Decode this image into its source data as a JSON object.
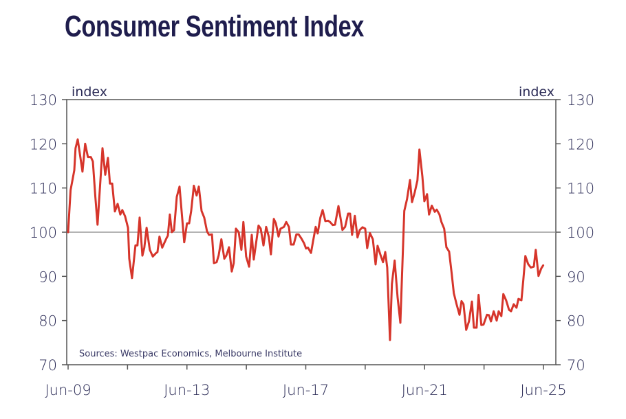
{
  "chart_data": {
    "type": "line",
    "title": "Consumer Sentiment Index",
    "ylabel_left": "index",
    "ylabel_right": "index",
    "source": "Sources: Westpac Economics, Melbourne Institute",
    "ylim": [
      70,
      130
    ],
    "yticks": [
      70,
      80,
      90,
      100,
      110,
      120,
      130
    ],
    "reference_line": 100,
    "x_unit": "months since Jun-09",
    "xlim": [
      0,
      192
    ],
    "xticks": [
      {
        "m": 0,
        "label": "Jun-09"
      },
      {
        "m": 24,
        "label": ""
      },
      {
        "m": 48,
        "label": "Jun-13"
      },
      {
        "m": 72,
        "label": ""
      },
      {
        "m": 96,
        "label": "Jun-17"
      },
      {
        "m": 120,
        "label": ""
      },
      {
        "m": 144,
        "label": "Jun-21"
      },
      {
        "m": 168,
        "label": ""
      },
      {
        "m": 192,
        "label": "Jun-25"
      }
    ],
    "series": [
      {
        "name": "Consumer Sentiment Index",
        "color": "#d6352b",
        "points": [
          [
            0,
            100
          ],
          [
            1,
            109.5
          ],
          [
            2.5,
            114
          ],
          [
            3,
            119
          ],
          [
            3.9,
            121
          ],
          [
            5.8,
            113.7
          ],
          [
            6.9,
            120
          ],
          [
            8,
            117
          ],
          [
            9.2,
            117
          ],
          [
            10,
            116
          ],
          [
            11,
            108
          ],
          [
            11.9,
            101.7
          ],
          [
            13.9,
            119
          ],
          [
            15,
            113
          ],
          [
            16.1,
            116.8
          ],
          [
            16.9,
            111
          ],
          [
            17.8,
            111
          ],
          [
            18.9,
            104.7
          ],
          [
            20,
            106.4
          ],
          [
            21.1,
            104
          ],
          [
            21.9,
            105
          ],
          [
            23,
            103.6
          ],
          [
            24.2,
            101
          ],
          [
            24.7,
            94
          ],
          [
            25.8,
            89.6
          ],
          [
            27.2,
            97
          ],
          [
            28,
            97
          ],
          [
            28.9,
            103.3
          ],
          [
            30,
            94.7
          ],
          [
            30.8,
            96.5
          ],
          [
            31.7,
            101
          ],
          [
            33,
            96
          ],
          [
            34.2,
            94.5
          ],
          [
            35.6,
            95.3
          ],
          [
            36.1,
            95.5
          ],
          [
            36.9,
            99
          ],
          [
            38,
            96.5
          ],
          [
            39.7,
            98.6
          ],
          [
            40.3,
            99.2
          ],
          [
            41.1,
            104
          ],
          [
            41.9,
            100
          ],
          [
            42.8,
            100.5
          ],
          [
            43.9,
            108
          ],
          [
            45,
            110.3
          ],
          [
            46.9,
            97.7
          ],
          [
            48,
            102
          ],
          [
            48.9,
            102
          ],
          [
            49.7,
            104.8
          ],
          [
            50.8,
            110.5
          ],
          [
            51.9,
            108.3
          ],
          [
            52.8,
            110.3
          ],
          [
            53.9,
            104.8
          ],
          [
            55,
            103.3
          ],
          [
            56.1,
            100.2
          ],
          [
            56.9,
            99.4
          ],
          [
            58.1,
            99.5
          ],
          [
            58.9,
            93
          ],
          [
            60,
            93.2
          ],
          [
            60.8,
            94.7
          ],
          [
            61.9,
            98.4
          ],
          [
            63.1,
            94
          ],
          [
            63.9,
            94.7
          ],
          [
            65,
            96.6
          ],
          [
            66.1,
            91.1
          ],
          [
            66.9,
            93
          ],
          [
            67.8,
            100.8
          ],
          [
            68.9,
            100
          ],
          [
            70,
            96
          ],
          [
            70.8,
            102.3
          ],
          [
            71.9,
            94.5
          ],
          [
            73.1,
            92.2
          ],
          [
            74.2,
            99.4
          ],
          [
            75,
            93.8
          ],
          [
            76.9,
            101.5
          ],
          [
            77.8,
            100.8
          ],
          [
            78.9,
            97
          ],
          [
            80,
            101.2
          ],
          [
            81.1,
            98.9
          ],
          [
            81.9,
            95
          ],
          [
            83.1,
            103
          ],
          [
            83.9,
            102
          ],
          [
            85,
            99
          ],
          [
            85.8,
            100.8
          ],
          [
            87.2,
            101.2
          ],
          [
            88.1,
            102.3
          ],
          [
            89.2,
            101.2
          ],
          [
            90,
            97.2
          ],
          [
            91.1,
            97.2
          ],
          [
            92.2,
            99.5
          ],
          [
            93.1,
            99.5
          ],
          [
            94.2,
            98.6
          ],
          [
            95.3,
            97.5
          ],
          [
            96.1,
            96.3
          ],
          [
            96.9,
            96.5
          ],
          [
            98.1,
            95.3
          ],
          [
            98.9,
            97.8
          ],
          [
            100,
            101.2
          ],
          [
            100.8,
            99.7
          ],
          [
            101.9,
            103.3
          ],
          [
            102.8,
            105
          ],
          [
            103.9,
            102.5
          ],
          [
            105,
            102.6
          ],
          [
            105.8,
            102.3
          ],
          [
            106.9,
            101.6
          ],
          [
            107.8,
            101.7
          ],
          [
            109.2,
            105.9
          ],
          [
            110,
            103.3
          ],
          [
            110.8,
            100.5
          ],
          [
            111.9,
            101.2
          ],
          [
            113.1,
            104.2
          ],
          [
            113.9,
            104.2
          ],
          [
            114.7,
            99.4
          ],
          [
            115.8,
            103.7
          ],
          [
            116.9,
            98.8
          ],
          [
            117.8,
            100.5
          ],
          [
            118.9,
            101.1
          ],
          [
            120,
            100.8
          ],
          [
            120.8,
            96.4
          ],
          [
            121.9,
            99.8
          ],
          [
            123.1,
            98.4
          ],
          [
            124.2,
            92.7
          ],
          [
            125,
            96.9
          ],
          [
            126.1,
            95
          ],
          [
            127.2,
            93.2
          ],
          [
            128.1,
            95.5
          ],
          [
            128.9,
            92
          ],
          [
            130,
            75.6
          ],
          [
            130.8,
            88.3
          ],
          [
            131.9,
            93.6
          ],
          [
            133.1,
            85.2
          ],
          [
            134.2,
            79.5
          ],
          [
            135.8,
            104.8
          ],
          [
            136.9,
            107.5
          ],
          [
            138.1,
            111.8
          ],
          [
            138.9,
            106.8
          ],
          [
            140,
            109
          ],
          [
            141.1,
            111.7
          ],
          [
            141.9,
            118.7
          ],
          [
            143.1,
            112.6
          ],
          [
            143.9,
            107
          ],
          [
            145,
            108.6
          ],
          [
            145.8,
            104
          ],
          [
            146.9,
            106
          ],
          [
            148.1,
            104.6
          ],
          [
            148.9,
            105.1
          ],
          [
            150,
            104
          ],
          [
            150.8,
            102.3
          ],
          [
            151.9,
            100.8
          ],
          [
            152.8,
            96.6
          ],
          [
            153.9,
            95.6
          ],
          [
            155,
            90.4
          ],
          [
            155.8,
            86.2
          ],
          [
            156.9,
            83.7
          ],
          [
            158.1,
            81.3
          ],
          [
            158.9,
            84.4
          ],
          [
            159.7,
            83.7
          ],
          [
            160.8,
            77.9
          ],
          [
            161.9,
            79.8
          ],
          [
            163.1,
            84.3
          ],
          [
            163.9,
            78.4
          ],
          [
            165,
            78.4
          ],
          [
            165.8,
            85.8
          ],
          [
            166.9,
            79
          ],
          [
            167.8,
            79.1
          ],
          [
            169.2,
            81.3
          ],
          [
            170,
            81.2
          ],
          [
            170.8,
            79.8
          ],
          [
            171.9,
            82.1
          ],
          [
            173.1,
            80
          ],
          [
            173.9,
            82.1
          ],
          [
            175,
            81
          ],
          [
            175.8,
            86
          ],
          [
            176.9,
            84.6
          ],
          [
            178.1,
            82.4
          ],
          [
            178.9,
            82.1
          ],
          [
            180,
            83.7
          ],
          [
            181.1,
            82.9
          ],
          [
            181.9,
            84.9
          ],
          [
            183.1,
            84.6
          ],
          [
            183.9,
            89.3
          ],
          [
            184.7,
            94.6
          ],
          [
            185.8,
            92.8
          ],
          [
            186.9,
            92
          ],
          [
            188.1,
            92.2
          ],
          [
            188.9,
            96
          ],
          [
            190,
            90.1
          ],
          [
            191.1,
            91.8
          ],
          [
            191.9,
            92.5
          ]
        ]
      }
    ]
  }
}
